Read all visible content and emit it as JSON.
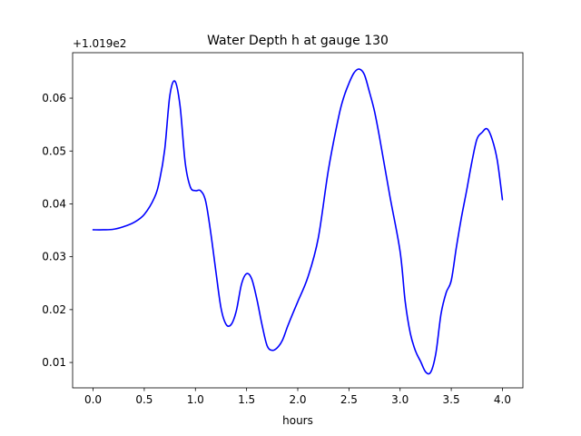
{
  "chart_data": {
    "type": "line",
    "title": "Water Depth h at gauge 130",
    "xlabel": "hours",
    "ylabel": "",
    "offset_text": "+1.019e2",
    "xlim": [
      -0.2,
      4.2
    ],
    "ylim": [
      0.0052,
      0.0686
    ],
    "x_ticks": [
      0.0,
      0.5,
      1.0,
      1.5,
      2.0,
      2.5,
      3.0,
      3.5,
      4.0
    ],
    "x_tick_labels": [
      "0.0",
      "0.5",
      "1.0",
      "1.5",
      "2.0",
      "2.5",
      "3.0",
      "3.5",
      "4.0"
    ],
    "y_ticks": [
      0.01,
      0.02,
      0.03,
      0.04,
      0.05,
      0.06
    ],
    "y_tick_labels": [
      "0.01",
      "0.02",
      "0.03",
      "0.04",
      "0.05",
      "0.06"
    ],
    "grid": false,
    "series": [
      {
        "color": "#0000ff",
        "x": [
          0.0,
          0.1,
          0.2,
          0.3,
          0.4,
          0.5,
          0.6,
          0.65,
          0.7,
          0.75,
          0.8,
          0.85,
          0.9,
          0.95,
          1.0,
          1.05,
          1.1,
          1.15,
          1.2,
          1.25,
          1.3,
          1.35,
          1.4,
          1.45,
          1.5,
          1.55,
          1.6,
          1.65,
          1.7,
          1.75,
          1.8,
          1.85,
          1.9,
          1.95,
          2.0,
          2.1,
          2.2,
          2.3,
          2.4,
          2.45,
          2.5,
          2.55,
          2.6,
          2.65,
          2.7,
          2.75,
          2.8,
          2.9,
          3.0,
          3.05,
          3.1,
          3.15,
          3.2,
          3.25,
          3.3,
          3.35,
          3.4,
          3.45,
          3.5,
          3.55,
          3.6,
          3.65,
          3.7,
          3.75,
          3.8,
          3.85,
          3.9,
          3.95,
          4.0
        ],
        "y": [
          0.0351,
          0.0351,
          0.0352,
          0.0357,
          0.0365,
          0.038,
          0.0412,
          0.0445,
          0.0503,
          0.0605,
          0.0632,
          0.0585,
          0.0478,
          0.0432,
          0.0425,
          0.0425,
          0.0405,
          0.0345,
          0.0272,
          0.0203,
          0.0172,
          0.0172,
          0.0198,
          0.0248,
          0.0268,
          0.0258,
          0.022,
          0.0172,
          0.0132,
          0.0123,
          0.0128,
          0.0142,
          0.0168,
          0.0192,
          0.0215,
          0.0262,
          0.0335,
          0.0465,
          0.0565,
          0.0602,
          0.0628,
          0.0648,
          0.0655,
          0.0645,
          0.0612,
          0.0575,
          0.0525,
          0.0415,
          0.031,
          0.0215,
          0.0155,
          0.0122,
          0.0102,
          0.0082,
          0.0082,
          0.0118,
          0.0192,
          0.0232,
          0.0255,
          0.0318,
          0.0375,
          0.0425,
          0.0478,
          0.0522,
          0.0535,
          0.0542,
          0.0522,
          0.0482,
          0.0408
        ]
      }
    ]
  }
}
